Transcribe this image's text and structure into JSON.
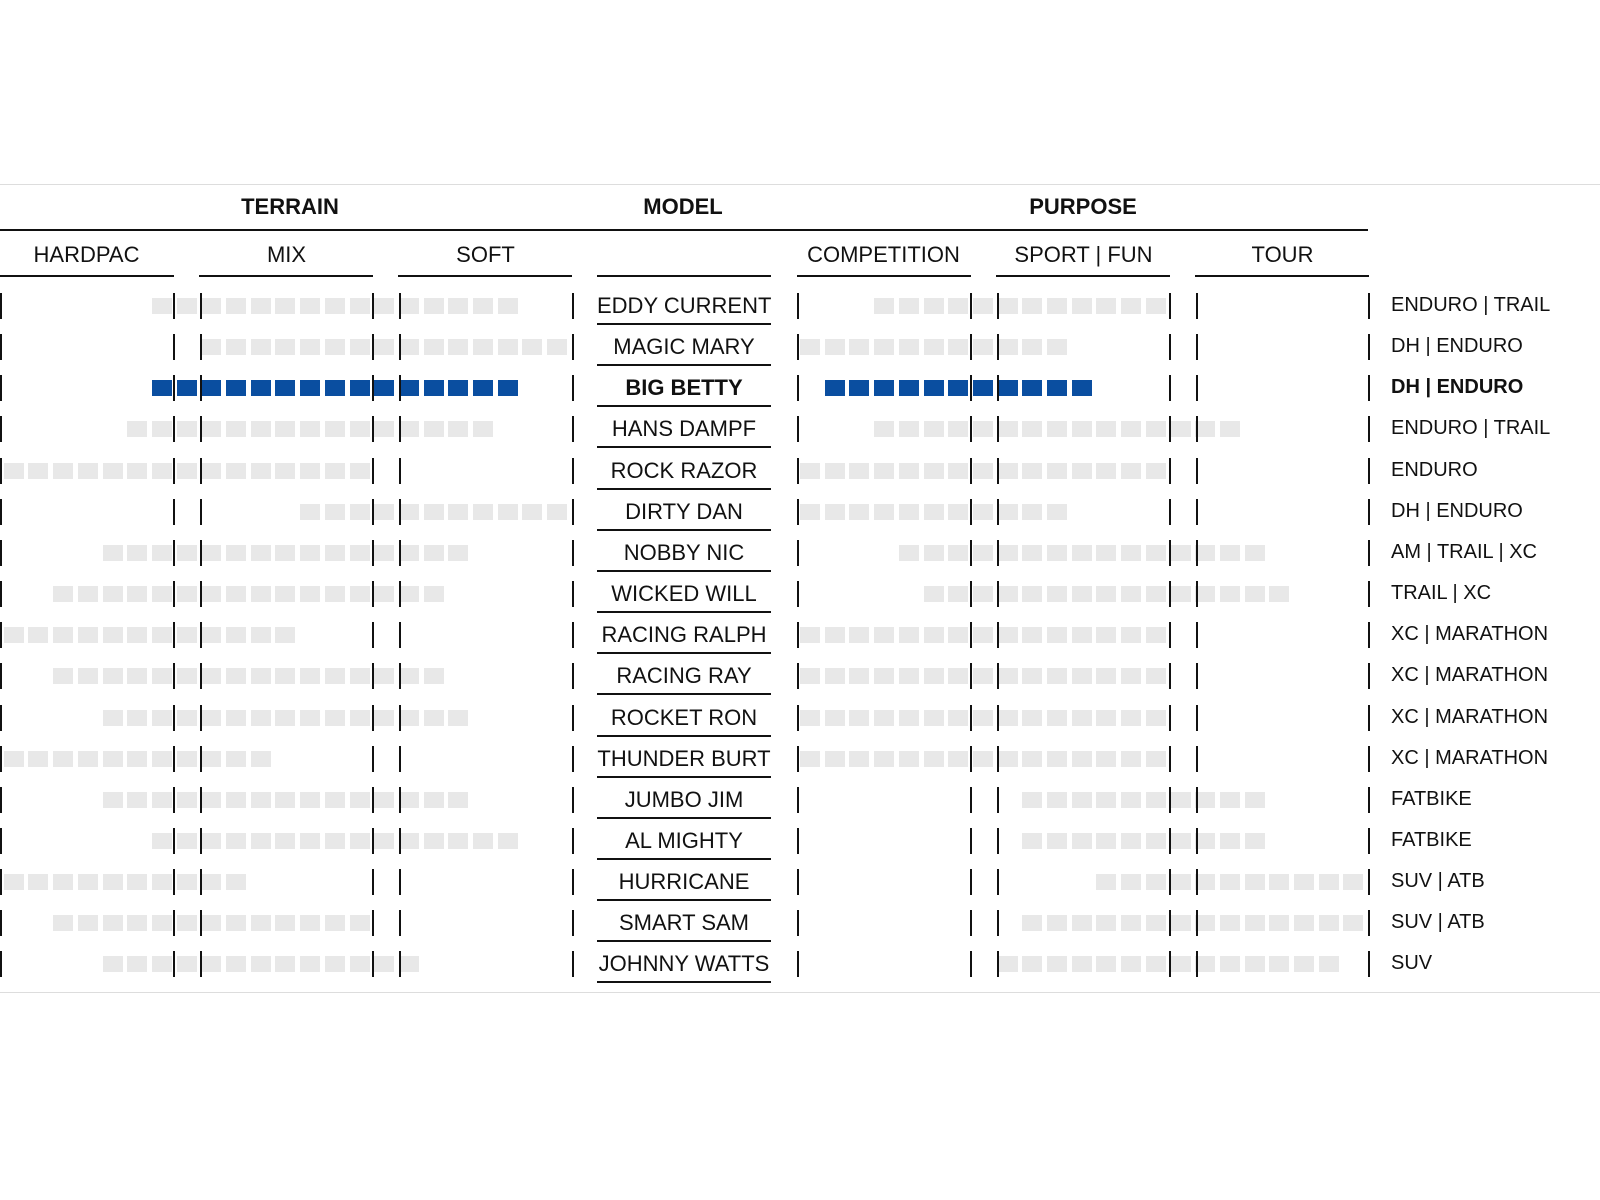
{
  "chart_data": {
    "type": "table",
    "headers": {
      "terrain": "TERRAIN",
      "model": "MODEL",
      "purpose": "PURPOSE"
    },
    "terrain_columns": [
      "HARDPAC",
      "MIX",
      "SOFT"
    ],
    "purpose_columns": [
      "COMPETITION",
      "SPORT | FUN",
      "TOUR"
    ],
    "scale_note_slots_per_section": 23,
    "colors": {
      "highlight": "#0a4ea0",
      "default": "#e8e8e8"
    },
    "rows": [
      {
        "model": "EDDY CURRENT",
        "usage": "ENDURO | TRAIL",
        "terrain": [
          6,
          20
        ],
        "purpose": [
          3,
          14
        ],
        "highlight": false
      },
      {
        "model": "MAGIC MARY",
        "usage": "DH | ENDURO",
        "terrain": [
          8,
          22
        ],
        "purpose": [
          0,
          10
        ],
        "highlight": false
      },
      {
        "model": "BIG BETTY",
        "usage": "DH | ENDURO",
        "terrain": [
          6,
          20
        ],
        "purpose": [
          1,
          11
        ],
        "highlight": true
      },
      {
        "model": "HANS DAMPF",
        "usage": "ENDURO | TRAIL",
        "terrain": [
          5,
          19
        ],
        "purpose": [
          3,
          17
        ],
        "highlight": false
      },
      {
        "model": "ROCK RAZOR",
        "usage": "ENDURO",
        "terrain": [
          0,
          14
        ],
        "purpose": [
          0,
          14
        ],
        "highlight": false
      },
      {
        "model": "DIRTY DAN",
        "usage": "DH | ENDURO",
        "terrain": [
          12,
          22
        ],
        "purpose": [
          0,
          10
        ],
        "highlight": false
      },
      {
        "model": "NOBBY NIC",
        "usage": "AM | TRAIL | XC",
        "terrain": [
          4,
          18
        ],
        "purpose": [
          4,
          18
        ],
        "highlight": false
      },
      {
        "model": "WICKED WILL",
        "usage": "TRAIL | XC",
        "terrain": [
          2,
          17
        ],
        "purpose": [
          5,
          19
        ],
        "highlight": false
      },
      {
        "model": "RACING RALPH",
        "usage": "XC | MARATHON",
        "terrain": [
          0,
          11
        ],
        "purpose": [
          0,
          14
        ],
        "highlight": false
      },
      {
        "model": "RACING RAY",
        "usage": "XC | MARATHON",
        "terrain": [
          2,
          17
        ],
        "purpose": [
          0,
          14
        ],
        "highlight": false
      },
      {
        "model": "ROCKET RON",
        "usage": "XC | MARATHON",
        "terrain": [
          4,
          18
        ],
        "purpose": [
          0,
          14
        ],
        "highlight": false
      },
      {
        "model": "THUNDER BURT",
        "usage": "XC | MARATHON",
        "terrain": [
          0,
          10
        ],
        "purpose": [
          0,
          14
        ],
        "highlight": false
      },
      {
        "model": "JUMBO JIM",
        "usage": "FATBIKE",
        "terrain": [
          4,
          18
        ],
        "purpose": [
          9,
          18
        ],
        "highlight": false
      },
      {
        "model": "AL MIGHTY",
        "usage": "FATBIKE",
        "terrain": [
          6,
          20
        ],
        "purpose": [
          9,
          18
        ],
        "highlight": false
      },
      {
        "model": "HURRICANE",
        "usage": "SUV | ATB",
        "terrain": [
          0,
          9
        ],
        "purpose": [
          12,
          22
        ],
        "highlight": false
      },
      {
        "model": "SMART SAM",
        "usage": "SUV | ATB",
        "terrain": [
          2,
          14
        ],
        "purpose": [
          9,
          22
        ],
        "highlight": false
      },
      {
        "model": "JOHNNY WATTS",
        "usage": "SUV",
        "terrain": [
          4,
          16
        ],
        "purpose": [
          8,
          21
        ],
        "highlight": false
      }
    ]
  }
}
